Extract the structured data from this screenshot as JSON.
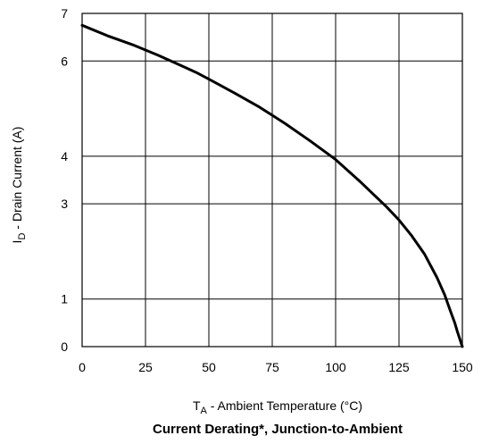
{
  "chart_data": {
    "type": "line",
    "title": "Current Derating*, Junction-to-Ambient",
    "xlabel": {
      "main": "T",
      "sub": "A",
      "rest": " - Ambient Temperature (°C)"
    },
    "ylabel": {
      "main": "I",
      "sub": "D",
      "rest": " - Drain Current (A)"
    },
    "xlim": [
      0,
      150
    ],
    "ylim": [
      0,
      7
    ],
    "x_ticks": [
      0,
      25,
      50,
      75,
      100,
      125,
      150
    ],
    "x_tick_labels": [
      "0",
      "25",
      "50",
      "75",
      "100",
      "125",
      "150"
    ],
    "y_ticks": [
      0,
      1,
      3,
      4,
      6,
      7
    ],
    "y_tick_labels": [
      "0",
      "1",
      "3",
      "4",
      "6",
      "7"
    ],
    "grid": true,
    "line_color": "#000000",
    "series": [
      {
        "x": [
          0,
          10,
          20,
          25,
          30,
          40,
          45,
          50,
          60,
          70,
          75,
          80,
          90,
          100,
          110,
          120,
          125,
          130,
          135,
          140,
          143,
          145,
          147,
          148,
          149,
          149.6,
          150
        ],
        "y": [
          6.75,
          6.53,
          6.34,
          6.23,
          6.12,
          5.88,
          5.76,
          5.62,
          5.33,
          5.03,
          4.86,
          4.69,
          4.32,
          3.93,
          3.45,
          2.94,
          2.66,
          2.33,
          1.95,
          1.45,
          1.09,
          0.79,
          0.5,
          0.32,
          0.16,
          0.06,
          0.0
        ]
      }
    ]
  }
}
